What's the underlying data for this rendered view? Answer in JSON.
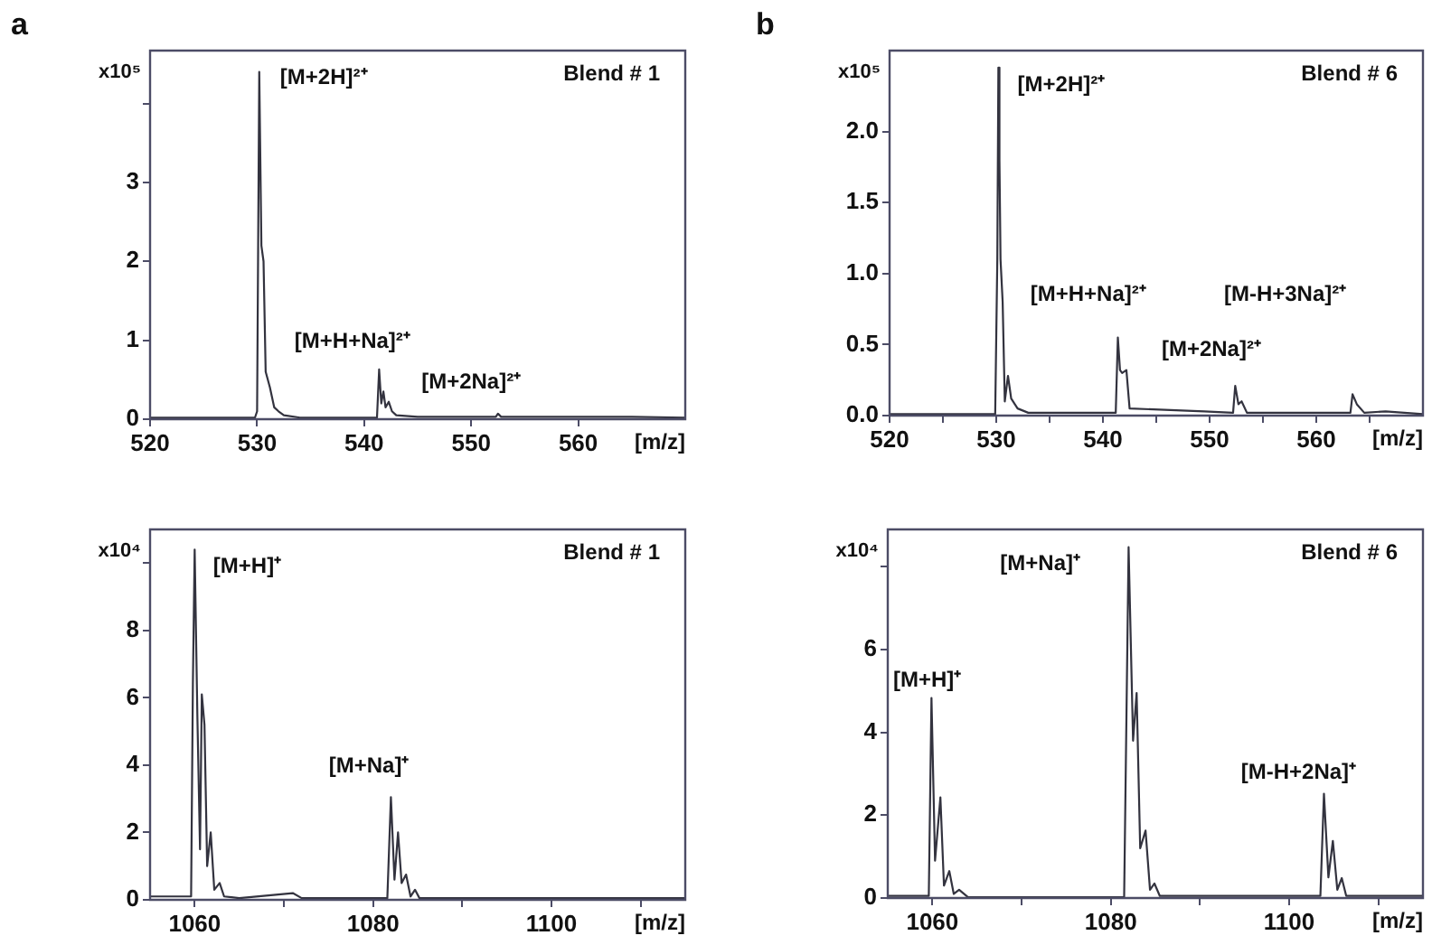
{
  "chart_data": [
    {
      "type": "line",
      "title": "a",
      "xlabel": "[m/z]",
      "ylabel": "x10⁵",
      "color": "#33333f",
      "marker": "none",
      "grid": false,
      "legend": false,
      "x": [
        520,
        525,
        529.8,
        530.0,
        530.2,
        530.4,
        530.6,
        530.8,
        531.2,
        531.6,
        532,
        532.5,
        534,
        538,
        541.2,
        541.4,
        541.6,
        541.8,
        542,
        542.3,
        542.6,
        543,
        545,
        550,
        552.3,
        552.5,
        552.8,
        558,
        565,
        570
      ],
      "values": [
        0.02,
        0.02,
        0.02,
        0.1,
        4.4,
        2.2,
        2.0,
        0.6,
        0.4,
        0.15,
        0.1,
        0.05,
        0.02,
        0.02,
        0.02,
        0.63,
        0.2,
        0.35,
        0.15,
        0.22,
        0.1,
        0.05,
        0.03,
        0.03,
        0.03,
        0.07,
        0.03,
        0.03,
        0.03,
        0.02
      ],
      "xlim": [
        520,
        570
      ],
      "ylim": [
        0,
        4.67
      ],
      "xticks": [
        520,
        530,
        540,
        550,
        560
      ],
      "yticks": [
        0,
        1,
        2,
        3,
        {
          "value": 4,
          "label": null
        }
      ],
      "annotations": [
        "Blend # 1",
        "[M+2H]²⁺",
        "[M+H+Na]²⁺",
        "[M+2Na]²⁺"
      ]
    },
    {
      "type": "line",
      "title": "b",
      "xlabel": "[m/z]",
      "ylabel": "x10⁵",
      "color": "#33333f",
      "marker": "none",
      "grid": false,
      "legend": false,
      "x": [
        520,
        529.9,
        530.1,
        530.2,
        530.3,
        530.4,
        530.6,
        530.8,
        531.1,
        531.4,
        532,
        533,
        541.2,
        541.4,
        541.6,
        541.8,
        542.2,
        542.5,
        549.5,
        552.2,
        552.4,
        552.7,
        553,
        553.5,
        560,
        563.2,
        563.4,
        563.8,
        564.5,
        566.5,
        570
      ],
      "values": [
        0.01,
        0.01,
        1.1,
        2.45,
        1.8,
        1.1,
        0.8,
        0.1,
        0.28,
        0.12,
        0.05,
        0.02,
        0.02,
        0.55,
        0.32,
        0.3,
        0.32,
        0.05,
        0.03,
        0.02,
        0.21,
        0.08,
        0.1,
        0.02,
        0.02,
        0.02,
        0.15,
        0.08,
        0.02,
        0.03,
        0.01
      ],
      "xlim": [
        520,
        570
      ],
      "ylim": [
        0,
        2.57
      ],
      "xticks": [
        520,
        {
          "value": 525,
          "label": null
        },
        530,
        {
          "value": 535,
          "label": null
        },
        540,
        {
          "value": 545,
          "label": null
        },
        550,
        {
          "value": 555,
          "label": null
        },
        560,
        {
          "value": 565,
          "label": null
        }
      ],
      "yticks": [
        {
          "value": 0,
          "label": "0.0"
        },
        {
          "value": 0.5,
          "label": "0.5"
        },
        {
          "value": 1,
          "label": "1.0"
        },
        {
          "value": 1.5,
          "label": "1.5"
        },
        {
          "value": 2,
          "label": "2.0"
        }
      ],
      "annotations": [
        "Blend # 6",
        "[M+2H]²⁺",
        "[M+H+Na]²⁺",
        "[M+2Na]²⁺",
        "[M-H+3Na]²⁺"
      ]
    },
    {
      "type": "line",
      "xlabel": "[m/z]",
      "ylabel": "x10⁴",
      "color": "#33333f",
      "marker": "none",
      "grid": false,
      "legend": false,
      "x": [
        1055,
        1059.6,
        1059.8,
        1060,
        1060.3,
        1060.6,
        1060.8,
        1061.1,
        1061.4,
        1061.8,
        1062.2,
        1062.8,
        1063.3,
        1065,
        1071,
        1072,
        1081.6,
        1082,
        1082.4,
        1082.8,
        1083.2,
        1083.7,
        1084.2,
        1084.7,
        1085.2,
        1100,
        1115
      ],
      "values": [
        0.1,
        0.1,
        6.4,
        10.4,
        5.5,
        1.5,
        6.1,
        5.2,
        1,
        2.0,
        0.3,
        0.5,
        0.1,
        0.05,
        0.2,
        0.05,
        0.05,
        3.05,
        0.6,
        2.0,
        0.5,
        0.75,
        0.1,
        0.3,
        0.05,
        0.05,
        0.05
      ],
      "xlim": [
        1055,
        1115
      ],
      "ylim": [
        0,
        11
      ],
      "xticks": [
        1060,
        {
          "value": 1070,
          "label": null
        },
        1080,
        {
          "value": 1090,
          "label": null
        },
        1100,
        {
          "value": 1110,
          "label": null
        }
      ],
      "yticks": [
        0,
        2,
        4,
        6,
        8,
        {
          "value": 10,
          "label": null
        }
      ],
      "annotations": [
        "Blend # 1",
        "[M+H]⁺",
        "[M+Na]⁺"
      ]
    },
    {
      "type": "line",
      "xlabel": "[m/z]",
      "ylabel": "x10⁴",
      "color": "#33333f",
      "marker": "none",
      "grid": false,
      "legend": false,
      "x": [
        1055,
        1059.6,
        1059.9,
        1060.3,
        1060.9,
        1061.3,
        1061.9,
        1062.4,
        1063,
        1064,
        1081.5,
        1082,
        1082.5,
        1082.9,
        1083.3,
        1083.9,
        1084.4,
        1084.9,
        1085.5,
        1103.5,
        1103.9,
        1104.4,
        1104.9,
        1105.4,
        1105.9,
        1106.4,
        1115
      ],
      "values": [
        0.05,
        0.05,
        4.83,
        0.9,
        2.43,
        0.3,
        0.65,
        0.1,
        0.2,
        0.02,
        0.02,
        8.47,
        3.8,
        4.95,
        1.2,
        1.63,
        0.2,
        0.35,
        0.05,
        0.05,
        2.52,
        0.5,
        1.38,
        0.2,
        0.48,
        0.05,
        0.05
      ],
      "xlim": [
        1055,
        1115
      ],
      "ylim": [
        0,
        8.9
      ],
      "xticks": [
        1060,
        {
          "value": 1070,
          "label": null
        },
        1080,
        {
          "value": 1090,
          "label": null
        },
        1100,
        {
          "value": 1110,
          "label": null
        }
      ],
      "yticks": [
        0,
        2,
        4,
        6,
        {
          "value": 8,
          "label": null
        }
      ],
      "annotations": [
        "Blend # 6",
        "[M+Na]⁺",
        "[M+H]⁺",
        "[M-H+2Na]⁺"
      ]
    }
  ]
}
